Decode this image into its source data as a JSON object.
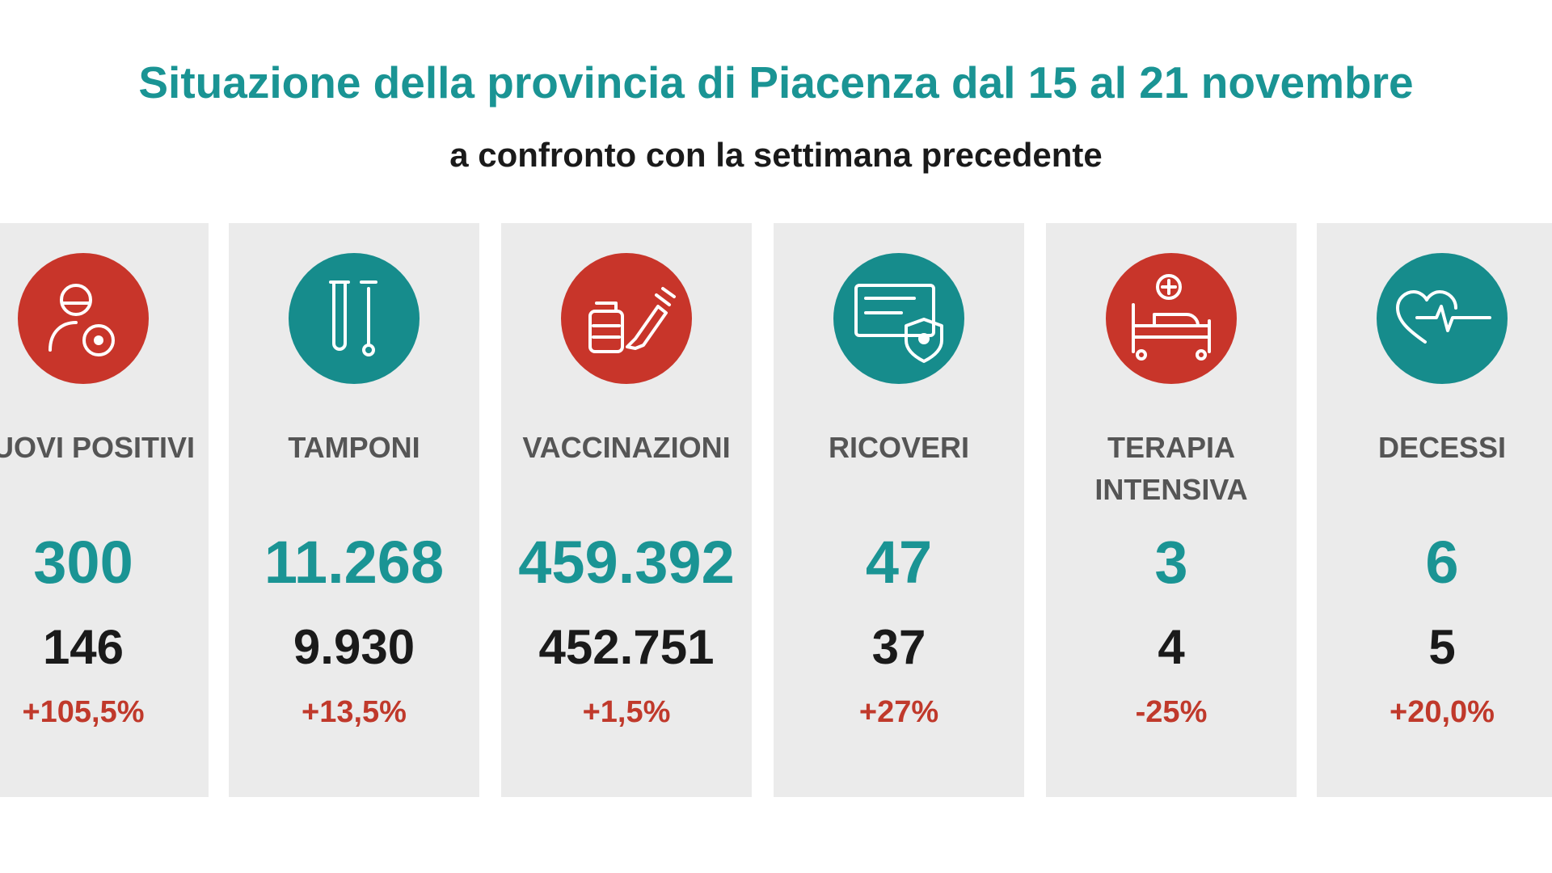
{
  "header": {
    "title": "Situazione della provincia di Piacenza dal 15 al 21 novembre",
    "subtitle": "a confronto con la settimana precedente"
  },
  "cards": [
    {
      "label": "NUOVI POSITIVI",
      "current": "300",
      "previous": "146",
      "change": "+105,5%"
    },
    {
      "label": "TAMPONI",
      "current": "11.268",
      "previous": "9.930",
      "change": "+13,5%"
    },
    {
      "label": "VACCINAZIONI",
      "current": "459.392",
      "previous": "452.751",
      "change": "+1,5%"
    },
    {
      "label": "RICOVERI",
      "current": "47",
      "previous": "37",
      "change": "+27%"
    },
    {
      "label": "TERAPIA INTENSIVA",
      "current": "3",
      "previous": "4",
      "change": "-25%"
    },
    {
      "label": "DECESSI",
      "current": "6",
      "previous": "5",
      "change": "+20,0%"
    }
  ]
}
